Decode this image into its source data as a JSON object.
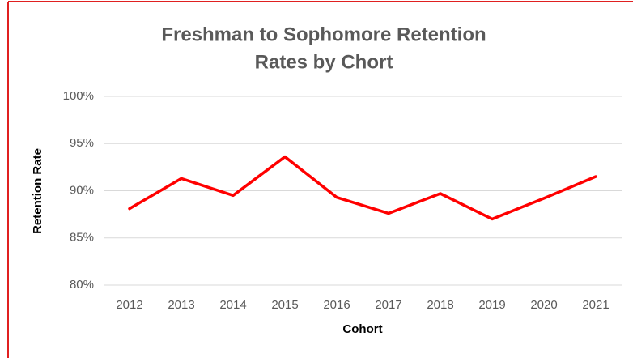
{
  "chart_data": {
    "type": "line",
    "title": [
      "Freshman to Sophomore Retention",
      "Rates by Chort"
    ],
    "x_label": "Cohort",
    "y_label": "Retention Rate",
    "categories": [
      "2012",
      "2013",
      "2014",
      "2015",
      "2016",
      "2017",
      "2018",
      "2019",
      "2020",
      "2021"
    ],
    "series": [
      {
        "name": "Retention Rate",
        "color": "#ff0000",
        "values": [
          88.1,
          91.3,
          89.5,
          93.6,
          89.3,
          87.6,
          89.7,
          87.0,
          89.2,
          91.5
        ]
      }
    ],
    "ylim": [
      80,
      100
    ],
    "yticks": [
      {
        "value": 80,
        "label": "80%"
      },
      {
        "value": 85,
        "label": "85%"
      },
      {
        "value": 90,
        "label": "90%"
      },
      {
        "value": 95,
        "label": "95%"
      },
      {
        "value": 100,
        "label": "100%"
      }
    ],
    "grid": true,
    "legend": false
  }
}
